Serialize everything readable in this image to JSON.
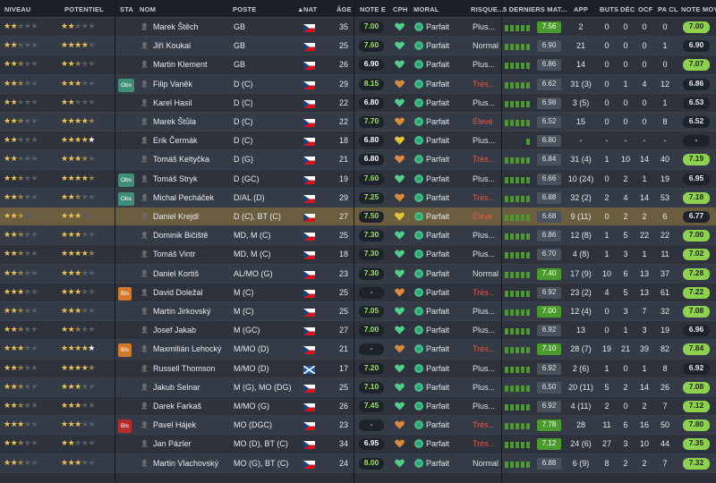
{
  "headers": {
    "niveau": "NIVEAU",
    "potentiel": "POTENTIEL",
    "sta": "STA",
    "nom": "NOM",
    "poste": "POSTE",
    "nat": "NAT",
    "age": "ÂGE",
    "note_e": "NOTE E",
    "cph": "CPH",
    "moral": "MORAL",
    "risque": "RISQUE...",
    "derniers": "5 DERNIERS MAT...",
    "app": "APP",
    "buts": "BUTS",
    "dec": "DÉC",
    "ocf": "OCF",
    "pacl": "PA CL",
    "note_moy": "NOTE MOY"
  },
  "sort_indicator": "▲",
  "colors": {
    "star": "#e9c452",
    "rating_green": "#9be35a",
    "form_green": "#4b9a2e",
    "avg_green": "#8ed14f",
    "risk_red": "#e85a4a",
    "heart_green": "#4fd08a",
    "heart_orange": "#d98a3a",
    "heart_yellow": "#e2c23c",
    "selected_row": "#6b5e3f"
  },
  "icons": {
    "person": "person-icon",
    "flag_cz": "czech-flag-icon",
    "flag_sc": "scotland-flag-icon",
    "heart": "heart-icon",
    "mood": "mood-perfect-icon"
  },
  "players": [
    {
      "niveau": 2,
      "potentiel": 2,
      "sta": "",
      "name": "Marek Štěch",
      "poste": "GB",
      "nat": "cz",
      "age": "35",
      "note": "7.00",
      "note_class": "good",
      "heart": "green",
      "moral": "Parfait",
      "risk": "Plus...",
      "risk_class": "norm",
      "form": [
        6,
        6,
        6,
        6,
        6
      ],
      "form_val": "7.56",
      "form_class": "green",
      "app": "2",
      "buts": "0",
      "dec": "0",
      "ocf": "0",
      "pacl": "0",
      "avg": "7.00",
      "avg_class": "green"
    },
    {
      "niveau": 2,
      "potentiel": 4,
      "sta": "",
      "name": "Jiří Koukal",
      "poste": "GB",
      "nat": "cz",
      "age": "25",
      "note": "7.60",
      "note_class": "good",
      "heart": "green",
      "moral": "Parfait",
      "risk": "Normal",
      "risk_class": "norm",
      "form": [
        6,
        6,
        6,
        6,
        6
      ],
      "form_val": "6.90",
      "form_class": "grey",
      "app": "21",
      "buts": "0",
      "dec": "0",
      "ocf": "0",
      "pacl": "1",
      "avg": "6.90",
      "avg_class": "dark"
    },
    {
      "niveau": 2.5,
      "potentiel": 2.5,
      "sta": "",
      "name": "Martin Klement",
      "poste": "GB",
      "nat": "cz",
      "age": "26",
      "note": "6.90",
      "note_class": "med",
      "heart": "green",
      "moral": "Parfait",
      "risk": "Plus...",
      "risk_class": "norm",
      "form": [
        6,
        6,
        6,
        6,
        6
      ],
      "form_val": "6.86",
      "form_class": "grey",
      "app": "14",
      "buts": "0",
      "dec": "0",
      "ocf": "0",
      "pacl": "0",
      "avg": "7.07",
      "avg_class": "green"
    },
    {
      "niveau": 2.5,
      "potentiel": 3,
      "sta": "Obs",
      "sta_class": "obs",
      "name": "Filip Vaněk",
      "poste": "D (C)",
      "nat": "cz",
      "age": "29",
      "note": "8.15",
      "note_class": "good",
      "heart": "orange",
      "moral": "Parfait",
      "risk": "Très...",
      "risk_class": "high",
      "form": [
        6,
        6,
        6,
        6,
        6
      ],
      "form_val": "6.62",
      "form_class": "grey",
      "app": "31 (3)",
      "buts": "0",
      "dec": "1",
      "ocf": "4",
      "pacl": "12",
      "avg": "6.86",
      "avg_class": "dark"
    },
    {
      "niveau": 2,
      "potentiel": 2,
      "sta": "",
      "name": "Karel Hasil",
      "poste": "D (C)",
      "nat": "cz",
      "age": "22",
      "note": "6.80",
      "note_class": "med",
      "heart": "green",
      "moral": "Parfait",
      "risk": "Plus...",
      "risk_class": "norm",
      "form": [
        6,
        6,
        6,
        6,
        6
      ],
      "form_val": "6.98",
      "form_class": "grey",
      "app": "3 (5)",
      "buts": "0",
      "dec": "0",
      "ocf": "0",
      "pacl": "1",
      "avg": "6.53",
      "avg_class": "dark"
    },
    {
      "niveau": 2.5,
      "potentiel": 4.5,
      "sta": "",
      "name": "Marek Štůla",
      "poste": "D (C)",
      "nat": "cz",
      "age": "22",
      "note": "7.70",
      "note_class": "good",
      "heart": "orange",
      "moral": "Parfait",
      "risk": "Élevé",
      "risk_class": "high",
      "form": [
        6,
        6,
        6,
        6,
        6
      ],
      "form_val": "6.52",
      "form_class": "grey",
      "app": "15",
      "buts": "0",
      "dec": "0",
      "ocf": "0",
      "pacl": "8",
      "avg": "6.52",
      "avg_class": "dark"
    },
    {
      "niveau": 2,
      "potentiel": 5,
      "sta": "",
      "name": "Erik Čermák",
      "poste": "D (C)",
      "nat": "cz",
      "age": "18",
      "note": "6.80",
      "note_class": "med",
      "heart": "yellow",
      "moral": "Parfait",
      "risk": "Plus...",
      "risk_class": "norm",
      "form": [
        0,
        0,
        0,
        0,
        6
      ],
      "form_val": "6.80",
      "form_class": "grey",
      "app": "-",
      "buts": "-",
      "dec": "-",
      "ocf": "-",
      "pacl": "-",
      "avg": "-",
      "avg_class": "dark"
    },
    {
      "niveau": 2,
      "potentiel": 3.5,
      "sta": "",
      "name": "Tomáš Keltyčka",
      "poste": "D (G)",
      "nat": "cz",
      "age": "21",
      "note": "6.80",
      "note_class": "med",
      "heart": "orange",
      "moral": "Parfait",
      "risk": "Très...",
      "risk_class": "high",
      "form": [
        6,
        6,
        6,
        6,
        6
      ],
      "form_val": "6.84",
      "form_class": "grey",
      "app": "31 (4)",
      "buts": "1",
      "dec": "10",
      "ocf": "14",
      "pacl": "40",
      "avg": "7.19",
      "avg_class": "green"
    },
    {
      "niveau": 2.5,
      "potentiel": 4.5,
      "sta": "Obs",
      "sta_class": "obs",
      "name": "Tomáš Stryk",
      "poste": "D (GC)",
      "nat": "cz",
      "age": "19",
      "note": "7.60",
      "note_class": "good",
      "heart": "green",
      "moral": "Parfait",
      "risk": "Plus...",
      "risk_class": "norm",
      "form": [
        6,
        6,
        6,
        6,
        6
      ],
      "form_val": "6.66",
      "form_class": "grey",
      "app": "10 (24)",
      "buts": "0",
      "dec": "2",
      "ocf": "1",
      "pacl": "19",
      "avg": "6.95",
      "avg_class": "dark"
    },
    {
      "niveau": 2.5,
      "potentiel": 2.5,
      "sta": "Obs",
      "sta_class": "obs",
      "name": "Michal Pecháček",
      "poste": "D/AL (D)",
      "nat": "cz",
      "age": "29",
      "note": "7.25",
      "note_class": "good",
      "heart": "orange",
      "moral": "Parfait",
      "risk": "Très...",
      "risk_class": "high",
      "form": [
        6,
        6,
        6,
        6,
        6
      ],
      "form_val": "6.88",
      "form_class": "grey",
      "app": "32 (2)",
      "buts": "2",
      "dec": "4",
      "ocf": "14",
      "pacl": "53",
      "avg": "7.18",
      "avg_class": "green"
    },
    {
      "niveau": 2.5,
      "potentiel": 3,
      "sta": "",
      "name": "Daniel Krejdl",
      "poste": "D (C), BT (C)",
      "nat": "cz",
      "age": "27",
      "note": "7.50",
      "note_class": "good",
      "heart": "yellow",
      "moral": "Parfait",
      "risk": "Élevé",
      "risk_class": "high",
      "form": [
        6,
        6,
        6,
        6,
        6
      ],
      "form_val": "6.68",
      "form_class": "grey",
      "app": "9 (11)",
      "buts": "0",
      "dec": "2",
      "ocf": "2",
      "pacl": "6",
      "avg": "6.77",
      "avg_class": "dark",
      "selected": true
    },
    {
      "niveau": 2.5,
      "potentiel": 3,
      "sta": "",
      "name": "Dominik Bičiště",
      "poste": "MD, M (C)",
      "nat": "cz",
      "age": "25",
      "note": "7.30",
      "note_class": "good",
      "heart": "green",
      "moral": "Parfait",
      "risk": "Plus...",
      "risk_class": "norm",
      "form": [
        6,
        6,
        6,
        6,
        6
      ],
      "form_val": "6.86",
      "form_class": "grey",
      "app": "12 (8)",
      "buts": "1",
      "dec": "5",
      "ocf": "22",
      "pacl": "22",
      "avg": "7.00",
      "avg_class": "green"
    },
    {
      "niveau": 2.5,
      "potentiel": 4.5,
      "sta": "",
      "name": "Tomáš Vintr",
      "poste": "MD, M (C)",
      "nat": "cz",
      "age": "18",
      "note": "7.30",
      "note_class": "good",
      "heart": "green",
      "moral": "Parfait",
      "risk": "Plus...",
      "risk_class": "norm",
      "form": [
        6,
        6,
        6,
        6,
        6
      ],
      "form_val": "6.70",
      "form_class": "grey",
      "app": "4 (8)",
      "buts": "1",
      "dec": "3",
      "ocf": "1",
      "pacl": "11",
      "avg": "7.02",
      "avg_class": "green"
    },
    {
      "niveau": 2.5,
      "potentiel": 3,
      "sta": "",
      "name": "Daniel Kortiš",
      "poste": "AL/MO (G)",
      "nat": "cz",
      "age": "23",
      "note": "7.30",
      "note_class": "good",
      "heart": "green",
      "moral": "Parfait",
      "risk": "Normal",
      "risk_class": "norm",
      "form": [
        6,
        6,
        6,
        6,
        6
      ],
      "form_val": "7.40",
      "form_class": "green",
      "app": "17 (9)",
      "buts": "10",
      "dec": "6",
      "ocf": "13",
      "pacl": "37",
      "avg": "7.28",
      "avg_class": "green"
    },
    {
      "niveau": 3,
      "potentiel": 3,
      "sta": "Bls",
      "sta_class": "bls",
      "name": "David Doležal",
      "poste": "M (C)",
      "nat": "cz",
      "age": "25",
      "note": "-",
      "note_class": "dash",
      "heart": "orange",
      "moral": "Parfait",
      "risk": "Très...",
      "risk_class": "high",
      "form": [
        6,
        6,
        6,
        6,
        6
      ],
      "form_val": "6.92",
      "form_class": "grey",
      "app": "23 (2)",
      "buts": "4",
      "dec": "5",
      "ocf": "13",
      "pacl": "61",
      "avg": "7.22",
      "avg_class": "green"
    },
    {
      "niveau": 2.5,
      "potentiel": 3,
      "sta": "",
      "name": "Martin Jirkovský",
      "poste": "M (C)",
      "nat": "cz",
      "age": "25",
      "note": "7.05",
      "note_class": "good",
      "heart": "green",
      "moral": "Parfait",
      "risk": "Plus...",
      "risk_class": "norm",
      "form": [
        6,
        6,
        6,
        6,
        6
      ],
      "form_val": "7.00",
      "form_class": "green",
      "app": "12 (4)",
      "buts": "0",
      "dec": "3",
      "ocf": "7",
      "pacl": "32",
      "avg": "7.08",
      "avg_class": "green"
    },
    {
      "niveau": 2.5,
      "potentiel": 2.5,
      "sta": "",
      "name": "Josef Jakab",
      "poste": "M (GC)",
      "nat": "cz",
      "age": "27",
      "note": "7.00",
      "note_class": "good",
      "heart": "green",
      "moral": "Parfait",
      "risk": "Plus...",
      "risk_class": "norm",
      "form": [
        6,
        6,
        6,
        6,
        6
      ],
      "form_val": "6.92",
      "form_class": "grey",
      "app": "13",
      "buts": "0",
      "dec": "1",
      "ocf": "3",
      "pacl": "19",
      "avg": "6.96",
      "avg_class": "dark"
    },
    {
      "niveau": 3,
      "potentiel": 5,
      "sta": "Bls",
      "sta_class": "bls",
      "name": "Maxmilián Lehocký",
      "poste": "M/MO (D)",
      "nat": "cz",
      "age": "21",
      "note": "-",
      "note_class": "dash",
      "heart": "orange",
      "moral": "Parfait",
      "risk": "Très...",
      "risk_class": "high",
      "form": [
        6,
        6,
        6,
        6,
        6
      ],
      "form_val": "7.10",
      "form_class": "green",
      "app": "28 (7)",
      "buts": "19",
      "dec": "21",
      "ocf": "39",
      "pacl": "82",
      "avg": "7.84",
      "avg_class": "green"
    },
    {
      "niveau": 2.5,
      "potentiel": 4.5,
      "sta": "",
      "name": "Russell Thomson",
      "poste": "M/MO (D)",
      "nat": "sc",
      "age": "17",
      "note": "7.20",
      "note_class": "good",
      "heart": "green",
      "moral": "Parfait",
      "risk": "Plus...",
      "risk_class": "norm",
      "form": [
        6,
        6,
        6,
        6,
        6
      ],
      "form_val": "6.92",
      "form_class": "grey",
      "app": "2 (6)",
      "buts": "1",
      "dec": "0",
      "ocf": "1",
      "pacl": "8",
      "avg": "6.92",
      "avg_class": "dark"
    },
    {
      "niveau": 2.5,
      "potentiel": 3,
      "sta": "",
      "name": "Jakub Selnar",
      "poste": "M (G), MO (DG)",
      "nat": "cz",
      "age": "25",
      "note": "7.10",
      "note_class": "good",
      "heart": "green",
      "moral": "Parfait",
      "risk": "Plus...",
      "risk_class": "norm",
      "form": [
        6,
        6,
        6,
        6,
        6
      ],
      "form_val": "6.50",
      "form_class": "grey",
      "app": "20 (11)",
      "buts": "5",
      "dec": "2",
      "ocf": "14",
      "pacl": "26",
      "avg": "7.08",
      "avg_class": "green"
    },
    {
      "niveau": 2.5,
      "potentiel": 3,
      "sta": "",
      "name": "Darek Farkaš",
      "poste": "M/MO (G)",
      "nat": "cz",
      "age": "26",
      "note": "7.45",
      "note_class": "good",
      "heart": "green",
      "moral": "Parfait",
      "risk": "Plus...",
      "risk_class": "norm",
      "form": [
        6,
        6,
        6,
        6,
        6
      ],
      "form_val": "6.92",
      "form_class": "grey",
      "app": "4 (11)",
      "buts": "2",
      "dec": "0",
      "ocf": "2",
      "pacl": "7",
      "avg": "7.12",
      "avg_class": "green"
    },
    {
      "niveau": 3,
      "potentiel": 3,
      "sta": "Bls",
      "sta_class": "bls-red",
      "name": "Pavel Hájek",
      "poste": "MO (DGC)",
      "nat": "cz",
      "age": "23",
      "note": "-",
      "note_class": "dash",
      "heart": "orange",
      "moral": "Parfait",
      "risk": "Très...",
      "risk_class": "high",
      "form": [
        6,
        6,
        6,
        6,
        6
      ],
      "form_val": "7.78",
      "form_class": "green",
      "app": "28",
      "buts": "11",
      "dec": "6",
      "ocf": "16",
      "pacl": "50",
      "avg": "7.80",
      "avg_class": "green"
    },
    {
      "niveau": 2.5,
      "potentiel": 2,
      "sta": "",
      "name": "Jan Pázler",
      "poste": "MO (D), BT (C)",
      "nat": "cz",
      "age": "34",
      "note": "6.95",
      "note_class": "med",
      "heart": "orange",
      "moral": "Parfait",
      "risk": "Très...",
      "risk_class": "high",
      "form": [
        6,
        6,
        6,
        6,
        6
      ],
      "form_val": "7.12",
      "form_class": "green",
      "app": "24 (6)",
      "buts": "27",
      "dec": "3",
      "ocf": "10",
      "pacl": "44",
      "avg": "7.35",
      "avg_class": "green"
    },
    {
      "niveau": 2.5,
      "potentiel": 3,
      "sta": "",
      "name": "Martin Vlachovský",
      "poste": "MO (G), BT (C)",
      "nat": "cz",
      "age": "24",
      "note": "8.00",
      "note_class": "good",
      "heart": "green",
      "moral": "Parfait",
      "risk": "Normal",
      "risk_class": "norm",
      "form": [
        6,
        6,
        6,
        6,
        6
      ],
      "form_val": "6.88",
      "form_class": "grey",
      "app": "6 (9)",
      "buts": "8",
      "dec": "2",
      "ocf": "2",
      "pacl": "7",
      "avg": "7.32",
      "avg_class": "green"
    }
  ]
}
